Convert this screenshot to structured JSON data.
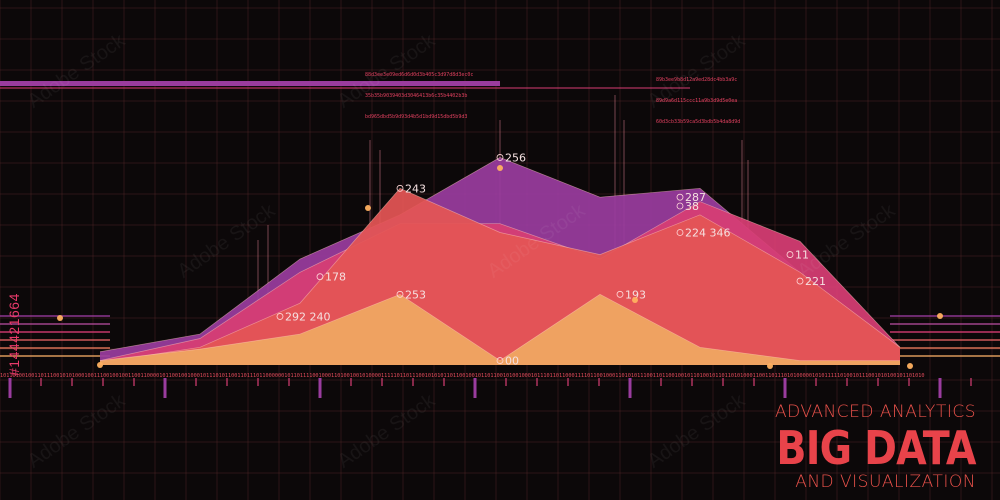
{
  "caption": {
    "line1": "ADVANCED ANALYTICS",
    "line2": "BIG DATA",
    "line3": "AND VISUALIZATION"
  },
  "side_id": "#144421664",
  "watermark": "Adobe Stock",
  "hex_blocks": [
    [
      "88d3ee3e09ed6d6d0d3b405c3d97d8d3ec0c",
      "35b35b9039403d3046413b6c35b4402b3b",
      "bd965dbd5b9d93d4b5d1bd9d15dbd5b9d3"
    ],
    [
      "89b3ee9b8d12a9ed28dc4bb3a9c",
      "89d9a6d115ccc11a9b3d9d5e0ea",
      "60d3cb33b59ca5d3bdb5b4da8d9d"
    ]
  ],
  "binary_strip": "10110100100110111001010100010011100100100110011000010110010010001011101011001101110110000001011011110010001101001001010000111110110111001010101101100100101101100101001000101110110110001111011001000110101011100110110010010110100101101101010001100110111010100000101011111010010111001010100101101010",
  "colors": {
    "background": "#0c0809",
    "grid": "#5a2a2a",
    "purple": "#9a3c9e",
    "pink": "#d73d74",
    "red": "#e45555",
    "orange": "#f0a862",
    "caption": "#e8434a"
  },
  "chart_data": {
    "type": "area",
    "title": "",
    "xlabel": "",
    "ylabel": "",
    "grid": true,
    "ylim": [
      0,
      300
    ],
    "x": [
      0,
      1,
      2,
      3,
      4,
      5,
      6,
      7,
      8
    ],
    "series": [
      {
        "color": "#9a3c9e",
        "values": [
          15,
          35,
          120,
          170,
          235,
          190,
          200,
          105,
          20
        ]
      },
      {
        "color": "#d73d74",
        "values": [
          5,
          30,
          105,
          160,
          160,
          120,
          185,
          140,
          20
        ]
      },
      {
        "color": "#e45555",
        "values": [
          3,
          20,
          70,
          200,
          150,
          125,
          170,
          105,
          20
        ]
      },
      {
        "color": "#f0a862",
        "values": [
          5,
          18,
          35,
          80,
          5,
          80,
          20,
          5,
          5
        ]
      }
    ],
    "data_labels": [
      {
        "x": 4,
        "y": 235,
        "text": "256"
      },
      {
        "x": 3,
        "y": 200,
        "text": "243"
      },
      {
        "x": 5.8,
        "y": 190,
        "text": "287"
      },
      {
        "x": 5.8,
        "y": 180,
        "text": "38"
      },
      {
        "x": 5.8,
        "y": 150,
        "text": "224 346"
      },
      {
        "x": 6.9,
        "y": 125,
        "text": "11"
      },
      {
        "x": 7,
        "y": 95,
        "text": "221"
      },
      {
        "x": 2.2,
        "y": 100,
        "text": "178"
      },
      {
        "x": 3,
        "y": 80,
        "text": "253"
      },
      {
        "x": 5.2,
        "y": 80,
        "text": "193"
      },
      {
        "x": 1.8,
        "y": 55,
        "text": "292 240"
      },
      {
        "x": 4,
        "y": 5,
        "text": "00"
      }
    ]
  }
}
